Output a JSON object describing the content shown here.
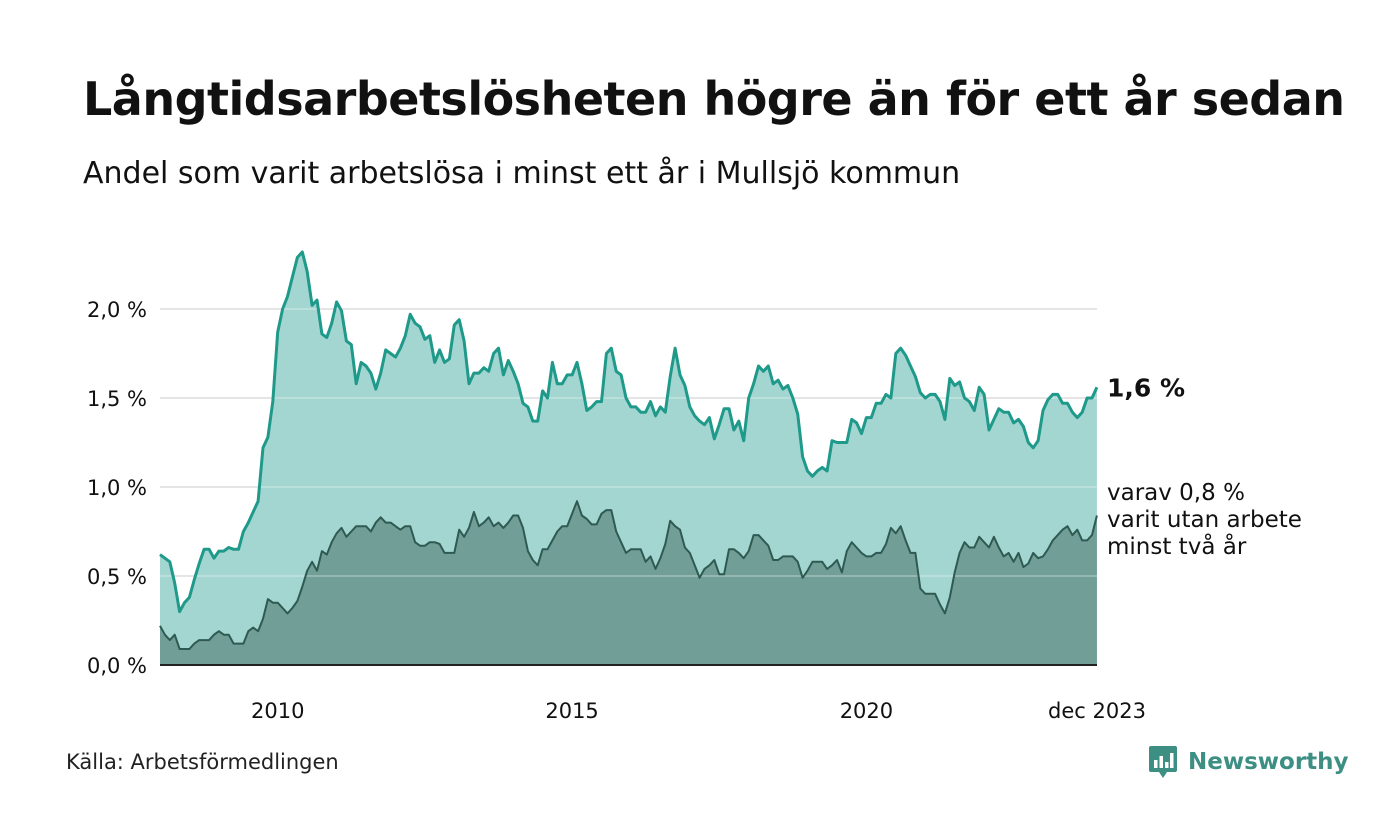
{
  "title": "Långtidsarbetslösheten högre än för ett år sedan",
  "subtitle": "Andel som varit arbetslösa i minst ett år i Mullsjö kommun",
  "source": "Källa: Arbetsförmedlingen",
  "brand": "Newsworthy",
  "colors": {
    "total_fill": "#a4d6d1",
    "total_line": "#1f998a",
    "long_fill": "#719f97",
    "long_line": "#2e5a52",
    "grid": "#dddddd",
    "brand": "#3d8f84"
  },
  "chart_data": {
    "type": "area",
    "x_start": 2008.0,
    "x_step": 0.08333,
    "xlim": [
      2008.0,
      2023.917
    ],
    "ylim": [
      0,
      2.5
    ],
    "y_ticks": [
      {
        "value": 0.0,
        "label": "0,0 %"
      },
      {
        "value": 0.5,
        "label": "0,5 %"
      },
      {
        "value": 1.0,
        "label": "1,0 %"
      },
      {
        "value": 1.5,
        "label": "1,5 %"
      },
      {
        "value": 2.0,
        "label": "2,0 %"
      }
    ],
    "x_ticks": [
      {
        "value": 2010.0,
        "label": "2010"
      },
      {
        "value": 2015.0,
        "label": "2015"
      },
      {
        "value": 2020.0,
        "label": "2020"
      },
      {
        "value": 2023.917,
        "label": "dec 2023"
      }
    ],
    "series": [
      {
        "name": "Arbetslösa minst ett år",
        "end_label": "1,6 %",
        "values": [
          0.62,
          0.6,
          0.58,
          0.46,
          0.3,
          0.35,
          0.38,
          0.48,
          0.57,
          0.65,
          0.65,
          0.6,
          0.64,
          0.64,
          0.66,
          0.65,
          0.65,
          0.75,
          0.8,
          0.86,
          0.92,
          1.22,
          1.28,
          1.48,
          1.87,
          2.0,
          2.07,
          2.18,
          2.29,
          2.32,
          2.21,
          2.02,
          2.05,
          1.86,
          1.84,
          1.92,
          2.04,
          1.99,
          1.82,
          1.8,
          1.58,
          1.7,
          1.68,
          1.64,
          1.55,
          1.64,
          1.77,
          1.75,
          1.73,
          1.78,
          1.85,
          1.97,
          1.92,
          1.9,
          1.83,
          1.85,
          1.7,
          1.77,
          1.7,
          1.72,
          1.91,
          1.94,
          1.82,
          1.58,
          1.64,
          1.64,
          1.67,
          1.65,
          1.75,
          1.78,
          1.63,
          1.71,
          1.65,
          1.58,
          1.47,
          1.45,
          1.37,
          1.37,
          1.54,
          1.5,
          1.7,
          1.58,
          1.58,
          1.63,
          1.63,
          1.7,
          1.58,
          1.43,
          1.45,
          1.48,
          1.48,
          1.75,
          1.78,
          1.65,
          1.63,
          1.5,
          1.45,
          1.45,
          1.42,
          1.42,
          1.48,
          1.4,
          1.45,
          1.42,
          1.62,
          1.78,
          1.63,
          1.57,
          1.45,
          1.4,
          1.37,
          1.35,
          1.39,
          1.27,
          1.35,
          1.44,
          1.44,
          1.32,
          1.37,
          1.26,
          1.5,
          1.58,
          1.68,
          1.65,
          1.68,
          1.58,
          1.6,
          1.55,
          1.57,
          1.5,
          1.41,
          1.17,
          1.09,
          1.06,
          1.09,
          1.11,
          1.09,
          1.26,
          1.25,
          1.25,
          1.25,
          1.38,
          1.36,
          1.3,
          1.39,
          1.39,
          1.47,
          1.47,
          1.52,
          1.5,
          1.75,
          1.78,
          1.74,
          1.68,
          1.62,
          1.53,
          1.5,
          1.52,
          1.52,
          1.48,
          1.38,
          1.61,
          1.57,
          1.59,
          1.5,
          1.48,
          1.43,
          1.56,
          1.52,
          1.32,
          1.38,
          1.44,
          1.42,
          1.42,
          1.36,
          1.38,
          1.34,
          1.25,
          1.22,
          1.26,
          1.43,
          1.49,
          1.52,
          1.52,
          1.47,
          1.47,
          1.42,
          1.39,
          1.42,
          1.5,
          1.5,
          1.56
        ]
      },
      {
        "name": "varav utan arbete minst två år",
        "end_label_lines": [
          "varav 0,8 %",
          "varit utan arbete",
          "minst två år"
        ],
        "values": [
          0.22,
          0.17,
          0.14,
          0.17,
          0.09,
          0.09,
          0.09,
          0.12,
          0.14,
          0.14,
          0.14,
          0.17,
          0.19,
          0.17,
          0.17,
          0.12,
          0.12,
          0.12,
          0.19,
          0.21,
          0.19,
          0.26,
          0.37,
          0.35,
          0.35,
          0.32,
          0.29,
          0.32,
          0.36,
          0.44,
          0.53,
          0.58,
          0.53,
          0.64,
          0.62,
          0.69,
          0.74,
          0.77,
          0.72,
          0.75,
          0.78,
          0.78,
          0.78,
          0.75,
          0.8,
          0.83,
          0.8,
          0.8,
          0.78,
          0.76,
          0.78,
          0.78,
          0.69,
          0.67,
          0.67,
          0.69,
          0.69,
          0.68,
          0.63,
          0.63,
          0.63,
          0.76,
          0.72,
          0.77,
          0.86,
          0.78,
          0.8,
          0.83,
          0.78,
          0.8,
          0.77,
          0.8,
          0.84,
          0.84,
          0.77,
          0.64,
          0.59,
          0.56,
          0.65,
          0.65,
          0.7,
          0.75,
          0.78,
          0.78,
          0.85,
          0.92,
          0.84,
          0.82,
          0.79,
          0.79,
          0.85,
          0.87,
          0.87,
          0.75,
          0.69,
          0.63,
          0.65,
          0.65,
          0.65,
          0.58,
          0.61,
          0.54,
          0.6,
          0.68,
          0.81,
          0.78,
          0.76,
          0.66,
          0.63,
          0.56,
          0.49,
          0.54,
          0.56,
          0.59,
          0.51,
          0.51,
          0.65,
          0.65,
          0.63,
          0.6,
          0.64,
          0.73,
          0.73,
          0.7,
          0.67,
          0.59,
          0.59,
          0.61,
          0.61,
          0.61,
          0.58,
          0.49,
          0.53,
          0.58,
          0.58,
          0.58,
          0.54,
          0.56,
          0.59,
          0.52,
          0.64,
          0.69,
          0.66,
          0.63,
          0.61,
          0.61,
          0.63,
          0.63,
          0.68,
          0.77,
          0.74,
          0.78,
          0.7,
          0.63,
          0.63,
          0.43,
          0.4,
          0.4,
          0.4,
          0.34,
          0.29,
          0.38,
          0.52,
          0.63,
          0.69,
          0.66,
          0.66,
          0.72,
          0.69,
          0.66,
          0.72,
          0.66,
          0.61,
          0.63,
          0.58,
          0.63,
          0.55,
          0.57,
          0.63,
          0.6,
          0.61,
          0.65,
          0.7,
          0.73,
          0.76,
          0.78,
          0.73,
          0.76,
          0.7,
          0.7,
          0.73,
          0.84
        ]
      }
    ]
  }
}
